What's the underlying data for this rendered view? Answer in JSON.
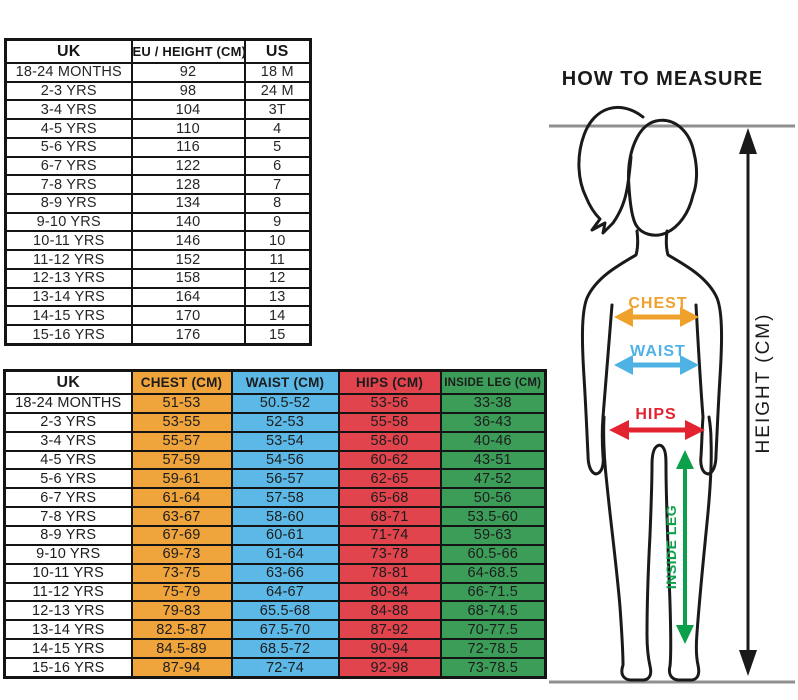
{
  "title": "HOW TO MEASURE",
  "size_table": {
    "headers": [
      "UK",
      "EU / HEIGHT (CM)",
      "US"
    ],
    "rows": [
      [
        "18-24 MONTHS",
        "92",
        "18 M"
      ],
      [
        "2-3 YRS",
        "98",
        "24 M"
      ],
      [
        "3-4 YRS",
        "104",
        "3T"
      ],
      [
        "4-5 YRS",
        "110",
        "4"
      ],
      [
        "5-6 YRS",
        "116",
        "5"
      ],
      [
        "6-7 YRS",
        "122",
        "6"
      ],
      [
        "7-8 YRS",
        "128",
        "7"
      ],
      [
        "8-9 YRS",
        "134",
        "8"
      ],
      [
        "9-10 YRS",
        "140",
        "9"
      ],
      [
        "10-11 YRS",
        "146",
        "10"
      ],
      [
        "11-12 YRS",
        "152",
        "11"
      ],
      [
        "12-13 YRS",
        "158",
        "12"
      ],
      [
        "13-14 YRS",
        "164",
        "13"
      ],
      [
        "14-15 YRS",
        "170",
        "14"
      ],
      [
        "15-16 YRS",
        "176",
        "15"
      ]
    ]
  },
  "body_table": {
    "headers": [
      "UK",
      "CHEST (CM)",
      "WAIST (CM)",
      "HIPS (CM)",
      "INSIDE LEG (CM)"
    ],
    "rows": [
      [
        "18-24 MONTHS",
        "51-53",
        "50.5-52",
        "53-56",
        "33-38"
      ],
      [
        "2-3 YRS",
        "53-55",
        "52-53",
        "55-58",
        "36-43"
      ],
      [
        "3-4 YRS",
        "55-57",
        "53-54",
        "58-60",
        "40-46"
      ],
      [
        "4-5 YRS",
        "57-59",
        "54-56",
        "60-62",
        "43-51"
      ],
      [
        "5-6 YRS",
        "59-61",
        "56-57",
        "62-65",
        "47-52"
      ],
      [
        "6-7 YRS",
        "61-64",
        "57-58",
        "65-68",
        "50-56"
      ],
      [
        "7-8 YRS",
        "63-67",
        "58-60",
        "68-71",
        "53.5-60"
      ],
      [
        "8-9 YRS",
        "67-69",
        "60-61",
        "71-74",
        "59-63"
      ],
      [
        "9-10 YRS",
        "69-73",
        "61-64",
        "73-78",
        "60.5-66"
      ],
      [
        "10-11 YRS",
        "73-75",
        "63-66",
        "78-81",
        "64-68.5"
      ],
      [
        "11-12 YRS",
        "75-79",
        "64-67",
        "80-84",
        "66-71.5"
      ],
      [
        "12-13 YRS",
        "79-83",
        "65.5-68",
        "84-88",
        "68-74.5"
      ],
      [
        "13-14 YRS",
        "82.5-87",
        "67.5-70",
        "87-92",
        "70-77.5"
      ],
      [
        "14-15 YRS",
        "84.5-89",
        "68.5-72",
        "90-94",
        "72-78.5"
      ],
      [
        "15-16 YRS",
        "87-94",
        "72-74",
        "92-98",
        "73-78.5"
      ]
    ]
  },
  "diagram": {
    "labels": {
      "chest": "CHEST",
      "waist": "WAIST",
      "hips": "HIPS",
      "inside_leg": "INSIDE LEG",
      "height": "HEIGHT (CM)"
    }
  },
  "colors": {
    "chest": "#F0A43C",
    "waist": "#5CB8E6",
    "hips": "#E2444E",
    "inside_leg": "#3C9D59",
    "chest_arrow": "#F0A12C",
    "waist_arrow": "#4FB2E5",
    "hips_arrow": "#E42330",
    "inside_leg_arrow": "#0CA04B",
    "guide_line": "#8F8F8F",
    "outline": "#1A1A1A"
  }
}
